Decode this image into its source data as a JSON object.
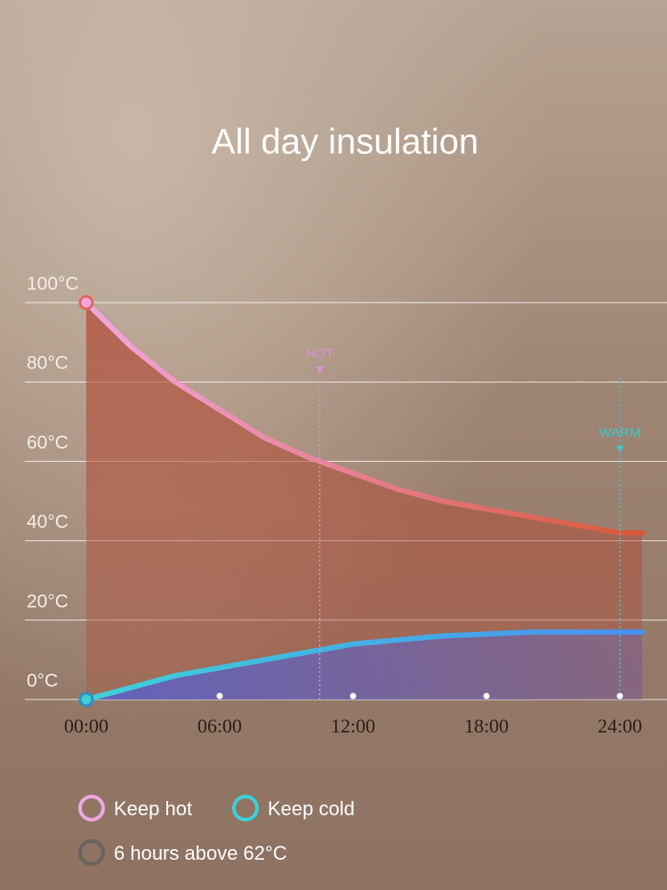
{
  "chart_data": {
    "type": "line",
    "title": "All day insulation",
    "x": [
      0,
      2,
      4,
      6,
      8,
      10,
      12,
      14,
      16,
      18,
      20,
      22,
      24,
      25
    ],
    "series": [
      {
        "name": "Keep hot",
        "color": "#f2a6e0",
        "color_end": "#d8583a",
        "fill": "#b5523c",
        "values": [
          100,
          89,
          80,
          73,
          66,
          61,
          57,
          53,
          50,
          48,
          46,
          44,
          42,
          42
        ]
      },
      {
        "name": "Keep cold",
        "color": "#3fd0d8",
        "color_end": "#4a8ff0",
        "fill": "#5560d2",
        "values": [
          0,
          3,
          6,
          8,
          10,
          12,
          14,
          15,
          16,
          16.5,
          17,
          17,
          17,
          17
        ]
      }
    ],
    "xlim": [
      0,
      25
    ],
    "xticks": [
      {
        "value": 0,
        "label": "00:00"
      },
      {
        "value": 6,
        "label": "06:00"
      },
      {
        "value": 12,
        "label": "12:00"
      },
      {
        "value": 18,
        "label": "18:00"
      },
      {
        "value": 24,
        "label": "24:00"
      }
    ],
    "ylim": [
      0,
      100
    ],
    "yticks": [
      {
        "value": 0,
        "label": "0°C"
      },
      {
        "value": 20,
        "label": "20°C"
      },
      {
        "value": 40,
        "label": "40°C"
      },
      {
        "value": 60,
        "label": "60°C"
      },
      {
        "value": 80,
        "label": "80°C"
      },
      {
        "value": 100,
        "label": "100°C"
      }
    ],
    "grid": true,
    "annotations": [
      {
        "text": "HOT",
        "x": 10.5,
        "color": "#e28ee0"
      },
      {
        "text": "WARM",
        "x": 24,
        "color": "#3cc8cf"
      }
    ],
    "footnote": {
      "text": "6 hours above 62°C",
      "color": "#6b625c"
    }
  }
}
